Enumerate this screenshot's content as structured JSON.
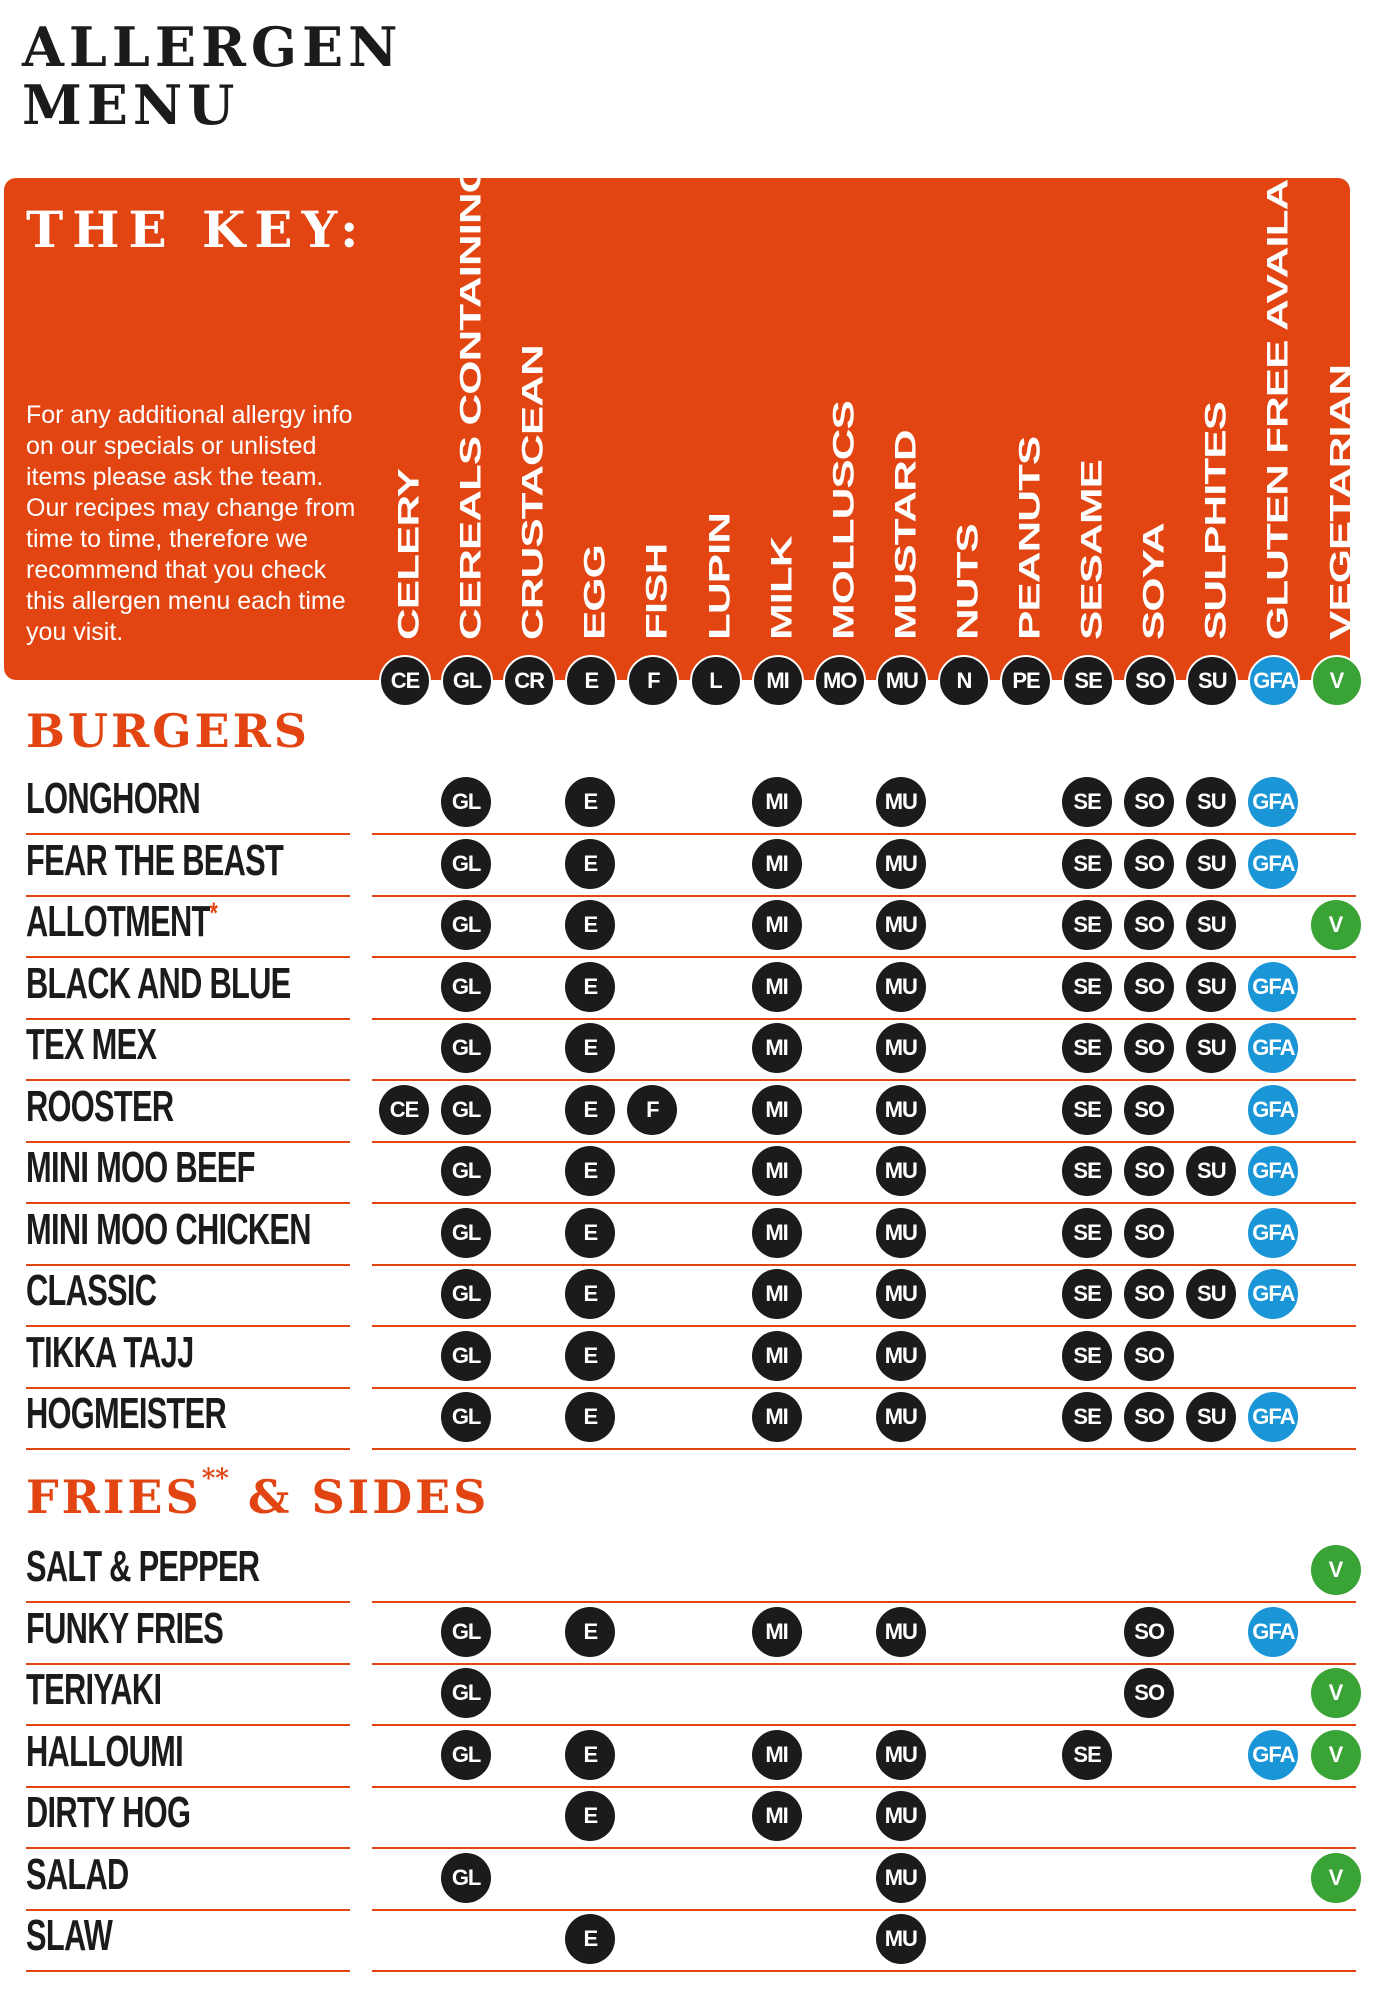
{
  "title": [
    "ALLERGEN",
    "MENU"
  ],
  "key": {
    "heading": "THE KEY:",
    "note": "For any additional allergy info on our specials or unlisted items please ask the team. Our recipes may change from time to time, therefore we recommend that you check this allergen menu each time you visit."
  },
  "columns": [
    {
      "code": "CE",
      "label": "CELERY",
      "type": "allergen"
    },
    {
      "code": "GL",
      "label": "CEREALS CONTAINING GLUTEN",
      "type": "allergen"
    },
    {
      "code": "CR",
      "label": "CRUSTACEAN",
      "type": "allergen"
    },
    {
      "code": "E",
      "label": "EGG",
      "type": "allergen"
    },
    {
      "code": "F",
      "label": "FISH",
      "type": "allergen"
    },
    {
      "code": "L",
      "label": "LUPIN",
      "type": "allergen"
    },
    {
      "code": "MI",
      "label": "MILK",
      "type": "allergen"
    },
    {
      "code": "MO",
      "label": "MOLLUSCS",
      "type": "allergen"
    },
    {
      "code": "MU",
      "label": "MUSTARD",
      "type": "allergen"
    },
    {
      "code": "N",
      "label": "NUTS",
      "type": "allergen"
    },
    {
      "code": "PE",
      "label": "PEANUTS",
      "type": "allergen"
    },
    {
      "code": "SE",
      "label": "SESAME",
      "type": "allergen"
    },
    {
      "code": "SO",
      "label": "SOYA",
      "type": "allergen"
    },
    {
      "code": "SU",
      "label": "SULPHITES",
      "type": "allergen"
    },
    {
      "code": "GFA",
      "label": "GLUTEN FREE AVAILABLE",
      "type": "gfa"
    },
    {
      "code": "V",
      "label": "VEGETARIAN",
      "type": "v"
    }
  ],
  "colors": {
    "accent": "#e24511",
    "badge": "#1b1b1b",
    "gfa": "#1a95d6",
    "vegetarian": "#3aa335"
  },
  "sections": [
    {
      "title": "BURGERS",
      "title_sup": "",
      "title_rest": "",
      "items": [
        {
          "name": "LONGHORN",
          "mark": "",
          "codes": [
            "GL",
            "E",
            "MI",
            "MU",
            "SE",
            "SO",
            "SU",
            "GFA"
          ]
        },
        {
          "name": "FEAR THE BEAST",
          "mark": "",
          "codes": [
            "GL",
            "E",
            "MI",
            "MU",
            "SE",
            "SO",
            "SU",
            "GFA"
          ]
        },
        {
          "name": "ALLOTMENT",
          "mark": "*",
          "codes": [
            "GL",
            "E",
            "MI",
            "MU",
            "SE",
            "SO",
            "SU",
            "V"
          ]
        },
        {
          "name": "BLACK AND BLUE",
          "mark": "",
          "codes": [
            "GL",
            "E",
            "MI",
            "MU",
            "SE",
            "SO",
            "SU",
            "GFA"
          ]
        },
        {
          "name": "TEX MEX",
          "mark": "",
          "codes": [
            "GL",
            "E",
            "MI",
            "MU",
            "SE",
            "SO",
            "SU",
            "GFA"
          ]
        },
        {
          "name": "ROOSTER",
          "mark": "",
          "codes": [
            "CE",
            "GL",
            "E",
            "F",
            "MI",
            "MU",
            "SE",
            "SO",
            "GFA"
          ]
        },
        {
          "name": "MINI MOO BEEF",
          "mark": "",
          "codes": [
            "GL",
            "E",
            "MI",
            "MU",
            "SE",
            "SO",
            "SU",
            "GFA"
          ]
        },
        {
          "name": "MINI MOO CHICKEN",
          "mark": "",
          "codes": [
            "GL",
            "E",
            "MI",
            "MU",
            "SE",
            "SO",
            "GFA"
          ]
        },
        {
          "name": "CLASSIC",
          "mark": "",
          "codes": [
            "GL",
            "E",
            "MI",
            "MU",
            "SE",
            "SO",
            "SU",
            "GFA"
          ]
        },
        {
          "name": "TIKKA TAJJ",
          "mark": "",
          "codes": [
            "GL",
            "E",
            "MI",
            "MU",
            "SE",
            "SO"
          ]
        },
        {
          "name": "HOGMEISTER",
          "mark": "",
          "codes": [
            "GL",
            "E",
            "MI",
            "MU",
            "SE",
            "SO",
            "SU",
            "GFA"
          ]
        }
      ]
    },
    {
      "title": "FRIES",
      "title_sup": "**",
      "title_rest": " & SIDES",
      "items": [
        {
          "name": "SALT & PEPPER",
          "mark": "",
          "codes": [
            "V"
          ]
        },
        {
          "name": "FUNKY FRIES",
          "mark": "",
          "codes": [
            "GL",
            "E",
            "MI",
            "MU",
            "SO",
            "GFA"
          ]
        },
        {
          "name": "TERIYAKI",
          "mark": "",
          "codes": [
            "GL",
            "SO",
            "V"
          ]
        },
        {
          "name": "HALLOUMI",
          "mark": "",
          "codes": [
            "GL",
            "E",
            "MI",
            "MU",
            "SE",
            "GFA",
            "V"
          ]
        },
        {
          "name": "DIRTY HOG",
          "mark": "",
          "codes": [
            "E",
            "MI",
            "MU"
          ]
        },
        {
          "name": "SALAD",
          "mark": "",
          "codes": [
            "GL",
            "MU",
            "V"
          ]
        },
        {
          "name": "SLAW",
          "mark": "",
          "codes": [
            "E",
            "MU"
          ]
        }
      ]
    }
  ]
}
